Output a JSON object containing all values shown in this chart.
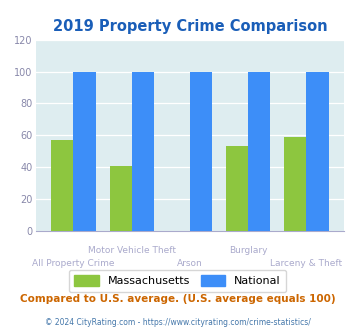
{
  "title": "2019 Property Crime Comparison",
  "categories": [
    "All Property Crime",
    "Motor Vehicle Theft",
    "Arson",
    "Burglary",
    "Larceny & Theft"
  ],
  "ma_values": [
    57,
    41,
    0,
    53,
    59
  ],
  "national_values": [
    100,
    100,
    100,
    100,
    100
  ],
  "ma_color": "#8dc63f",
  "national_color": "#3d8ef8",
  "bg_color": "#deedf0",
  "fig_bg": "#ffffff",
  "ylim": [
    0,
    120
  ],
  "yticks": [
    0,
    20,
    40,
    60,
    80,
    100,
    120
  ],
  "title_color": "#1a5eb8",
  "xlabel_color": "#aaaacc",
  "legend_label_ma": "Massachusetts",
  "legend_label_nat": "National",
  "note_text": "Compared to U.S. average. (U.S. average equals 100)",
  "footer_text": "© 2024 CityRating.com - https://www.cityrating.com/crime-statistics/",
  "note_color": "#cc6600",
  "footer_color": "#4477aa",
  "bar_width": 0.38
}
